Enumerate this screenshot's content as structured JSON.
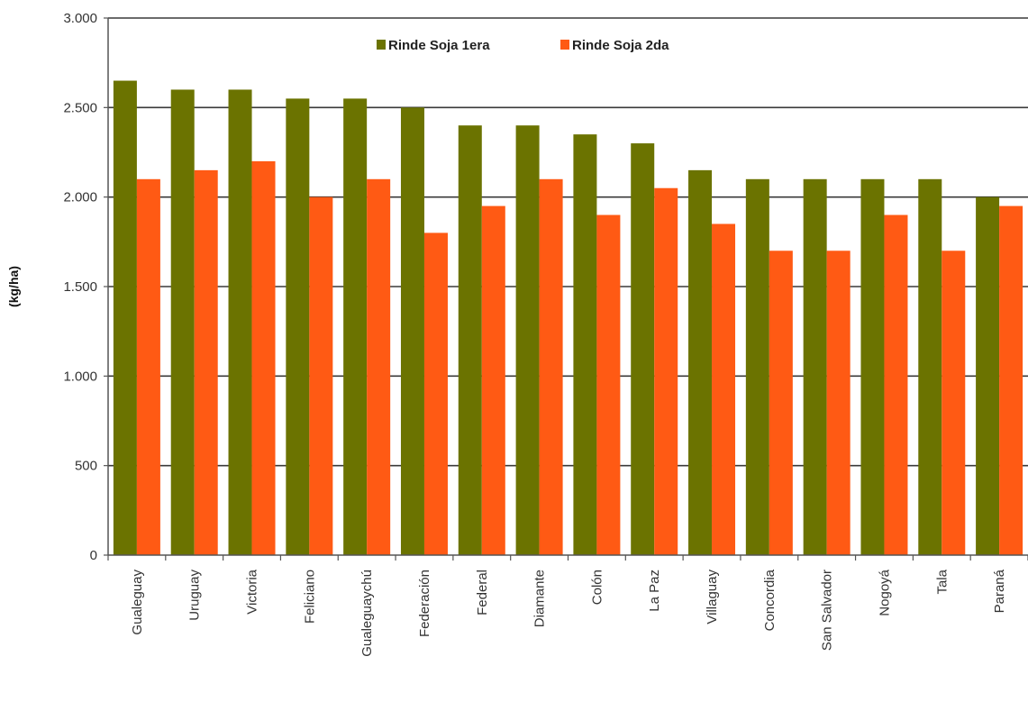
{
  "chart_data": {
    "type": "bar",
    "title": "",
    "xlabel": "",
    "ylabel": "(kg/ha)",
    "ylim": [
      0,
      3000
    ],
    "yticks": [
      0,
      500,
      1000,
      1500,
      2000,
      2500,
      3000
    ],
    "ytick_labels": [
      "0",
      "500",
      "1.000",
      "1.500",
      "2.000",
      "2.500",
      "3.000"
    ],
    "grid": true,
    "legend_position": "top",
    "categories": [
      "Gualeguay",
      "Uruguay",
      "Victoria",
      "Feliciano",
      "Gualeguaychú",
      "Federación",
      "Federal",
      "Diamante",
      "Colón",
      "La Paz",
      "Villaguay",
      "Concordia",
      "San Salvador",
      "Nogoyá",
      "Tala",
      "Paraná"
    ],
    "series": [
      {
        "name": "Rinde Soja 1era",
        "color": "#6b7300",
        "values": [
          2650,
          2600,
          2600,
          2550,
          2550,
          2500,
          2400,
          2400,
          2350,
          2300,
          2150,
          2100,
          2100,
          2100,
          2100,
          2000
        ]
      },
      {
        "name": "Rinde Soja 2da",
        "color": "#ff5a14",
        "values": [
          2100,
          2150,
          2200,
          2000,
          2100,
          1800,
          1950,
          2100,
          1900,
          2050,
          1850,
          1700,
          1700,
          1900,
          1700,
          1950
        ]
      }
    ]
  }
}
